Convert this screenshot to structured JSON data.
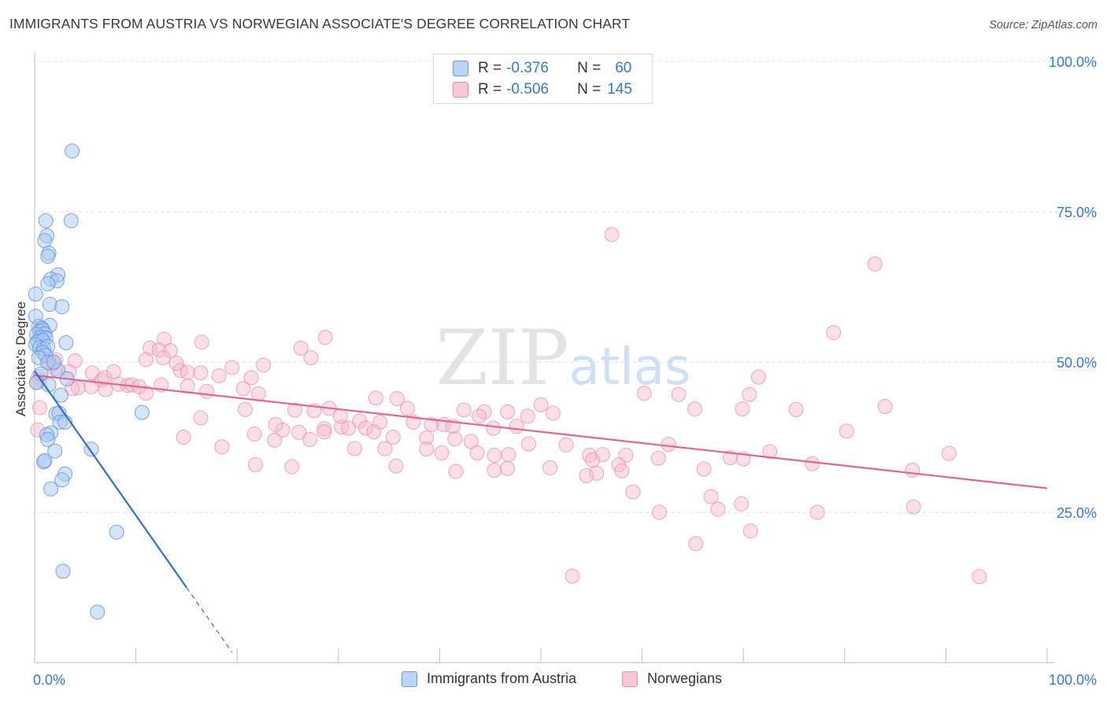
{
  "title": "IMMIGRANTS FROM AUSTRIA VS NORWEGIAN ASSOCIATE'S DEGREE CORRELATION CHART",
  "source": "Source: ZipAtlas.com",
  "watermark": {
    "zip": "ZIP",
    "atlas": "atlas"
  },
  "legend": {
    "rows": [
      {
        "r_label": "R =",
        "r_value": "-0.376",
        "n_label": "N =",
        "n_value": "60"
      },
      {
        "r_label": "R =",
        "r_value": "-0.506",
        "n_label": "N =",
        "n_value": "145"
      }
    ]
  },
  "colors": {
    "austria_fill": "#a9c8f0",
    "austria_stroke": "#5a90d8",
    "austria_line": "#2f6fd0",
    "norway_fill": "#f6b8cb",
    "norway_stroke": "#e98aa8",
    "norway_line": "#e0648f",
    "tick_text": "#3a76c9",
    "grid": "#dcdcdc"
  },
  "chart_data": {
    "type": "scatter",
    "ylabel": "Associate's Degree",
    "xlim": [
      0,
      100
    ],
    "ylim": [
      0,
      100
    ],
    "x_tick_labels": [
      "0.0%",
      "100.0%"
    ],
    "y_ticks": [
      25,
      50,
      75,
      100
    ],
    "y_tick_labels": [
      "25.0%",
      "50.0%",
      "75.0%",
      "100.0%"
    ],
    "series": [
      {
        "name": "Immigrants from Austria",
        "trend": {
          "x0": 0,
          "y0": 48.5,
          "x1": 15,
          "y1": 12.5,
          "dash_to_x": 19.5
        },
        "points": [
          [
            3.7,
            85.1
          ],
          [
            1.1,
            73.5
          ],
          [
            3.6,
            73.5
          ],
          [
            1.2,
            71.0
          ],
          [
            1.0,
            70.2
          ],
          [
            1.4,
            68.1
          ],
          [
            1.3,
            67.6
          ],
          [
            2.3,
            64.5
          ],
          [
            1.6,
            63.8
          ],
          [
            2.2,
            63.5
          ],
          [
            1.3,
            63.0
          ],
          [
            0.1,
            61.3
          ],
          [
            1.5,
            59.6
          ],
          [
            2.7,
            59.2
          ],
          [
            0.1,
            57.6
          ],
          [
            0.4,
            55.9
          ],
          [
            1.5,
            56.1
          ],
          [
            0.7,
            55.6
          ],
          [
            0.5,
            55.1
          ],
          [
            0.8,
            55.3
          ],
          [
            1.0,
            54.7
          ],
          [
            0.2,
            54.6
          ],
          [
            0.6,
            54.1
          ],
          [
            1.1,
            54.0
          ],
          [
            0.3,
            53.4
          ],
          [
            0.8,
            53.6
          ],
          [
            0.1,
            52.9
          ],
          [
            0.5,
            52.4
          ],
          [
            0.9,
            52.2
          ],
          [
            1.3,
            52.6
          ],
          [
            3.1,
            53.2
          ],
          [
            0.8,
            51.6
          ],
          [
            1.1,
            51.1
          ],
          [
            0.4,
            50.7
          ],
          [
            1.3,
            49.9
          ],
          [
            2.3,
            48.6
          ],
          [
            1.9,
            50.0
          ],
          [
            0.6,
            48.0
          ],
          [
            3.2,
            47.2
          ],
          [
            0.2,
            46.6
          ],
          [
            1.4,
            46.2
          ],
          [
            2.6,
            44.5
          ],
          [
            2.1,
            41.4
          ],
          [
            2.4,
            41.5
          ],
          [
            10.6,
            41.6
          ],
          [
            2.5,
            40.0
          ],
          [
            3.0,
            40.0
          ],
          [
            1.6,
            38.2
          ],
          [
            1.2,
            37.9
          ],
          [
            1.3,
            37.1
          ],
          [
            2.0,
            35.2
          ],
          [
            5.6,
            35.5
          ],
          [
            0.9,
            33.4
          ],
          [
            1.0,
            33.6
          ],
          [
            3.0,
            31.4
          ],
          [
            2.7,
            30.4
          ],
          [
            1.6,
            28.9
          ],
          [
            8.1,
            21.7
          ],
          [
            2.8,
            15.2
          ],
          [
            6.2,
            8.4
          ]
        ]
      },
      {
        "name": "Norwegians",
        "trend": {
          "x0": 0,
          "y0": 47.8,
          "x1": 100,
          "y1": 29.0
        },
        "points": [
          [
            57.0,
            71.2
          ],
          [
            83.0,
            66.3
          ],
          [
            78.9,
            54.9
          ],
          [
            28.7,
            54.1
          ],
          [
            26.3,
            52.3
          ],
          [
            12.8,
            53.8
          ],
          [
            11.4,
            52.3
          ],
          [
            12.3,
            52.0
          ],
          [
            13.4,
            51.9
          ],
          [
            16.5,
            53.3
          ],
          [
            11.0,
            50.4
          ],
          [
            12.7,
            50.7
          ],
          [
            27.3,
            50.7
          ],
          [
            4.0,
            50.2
          ],
          [
            1.4,
            50.1
          ],
          [
            2.1,
            50.4
          ],
          [
            3.4,
            48.4
          ],
          [
            7.8,
            48.4
          ],
          [
            5.7,
            48.2
          ],
          [
            14.4,
            48.6
          ],
          [
            16.4,
            48.2
          ],
          [
            18.2,
            47.7
          ],
          [
            21.4,
            47.4
          ],
          [
            6.6,
            47.0
          ],
          [
            8.3,
            46.3
          ],
          [
            9.2,
            46.1
          ],
          [
            4.3,
            45.7
          ],
          [
            3.7,
            45.6
          ],
          [
            7.0,
            45.4
          ],
          [
            17.0,
            45.1
          ],
          [
            9.6,
            46.2
          ],
          [
            11.0,
            44.8
          ],
          [
            71.5,
            47.5
          ],
          [
            60.2,
            44.8
          ],
          [
            63.6,
            44.6
          ],
          [
            70.6,
            44.6
          ],
          [
            33.7,
            44.0
          ],
          [
            35.8,
            43.9
          ],
          [
            36.8,
            42.3
          ],
          [
            27.6,
            41.9
          ],
          [
            29.1,
            42.3
          ],
          [
            42.4,
            42.0
          ],
          [
            44.4,
            41.7
          ],
          [
            46.7,
            41.7
          ],
          [
            50.0,
            42.9
          ],
          [
            51.2,
            41.5
          ],
          [
            48.7,
            41.0
          ],
          [
            65.2,
            42.2
          ],
          [
            69.9,
            42.2
          ],
          [
            75.2,
            42.1
          ],
          [
            25.7,
            42.0
          ],
          [
            16.4,
            40.7
          ],
          [
            32.1,
            40.2
          ],
          [
            34.1,
            40.0
          ],
          [
            37.4,
            40.0
          ],
          [
            39.2,
            39.6
          ],
          [
            40.4,
            39.6
          ],
          [
            41.3,
            39.3
          ],
          [
            45.3,
            39.0
          ],
          [
            47.6,
            39.3
          ],
          [
            28.6,
            38.9
          ],
          [
            30.3,
            39.2
          ],
          [
            31.0,
            39.0
          ],
          [
            32.7,
            39.0
          ],
          [
            33.5,
            38.4
          ],
          [
            35.4,
            37.5
          ],
          [
            38.7,
            37.4
          ],
          [
            41.5,
            37.2
          ],
          [
            43.1,
            36.8
          ],
          [
            48.8,
            36.4
          ],
          [
            52.5,
            36.2
          ],
          [
            24.5,
            38.7
          ],
          [
            26.1,
            38.3
          ],
          [
            27.2,
            37.1
          ],
          [
            28.6,
            38.4
          ],
          [
            14.7,
            37.5
          ],
          [
            21.7,
            38.0
          ],
          [
            23.7,
            37.0
          ],
          [
            18.5,
            35.9
          ],
          [
            31.6,
            35.6
          ],
          [
            34.6,
            35.6
          ],
          [
            38.7,
            35.5
          ],
          [
            40.2,
            34.9
          ],
          [
            43.7,
            34.9
          ],
          [
            45.4,
            34.5
          ],
          [
            46.8,
            34.6
          ],
          [
            54.8,
            34.5
          ],
          [
            56.1,
            34.6
          ],
          [
            58.4,
            34.5
          ],
          [
            61.6,
            34.0
          ],
          [
            68.7,
            34.1
          ],
          [
            70.0,
            33.9
          ],
          [
            72.6,
            35.1
          ],
          [
            76.8,
            33.1
          ],
          [
            84.0,
            42.6
          ],
          [
            80.2,
            38.5
          ],
          [
            90.3,
            34.8
          ],
          [
            86.7,
            32.0
          ],
          [
            55.1,
            33.7
          ],
          [
            57.7,
            32.9
          ],
          [
            55.5,
            31.5
          ],
          [
            54.5,
            31.1
          ],
          [
            50.9,
            32.4
          ],
          [
            58.0,
            31.9
          ],
          [
            62.6,
            36.3
          ],
          [
            66.1,
            32.2
          ],
          [
            25.4,
            32.6
          ],
          [
            21.8,
            32.9
          ],
          [
            35.7,
            32.7
          ],
          [
            41.6,
            31.8
          ],
          [
            45.4,
            32.0
          ],
          [
            46.7,
            32.3
          ],
          [
            59.1,
            28.4
          ],
          [
            66.8,
            27.6
          ],
          [
            69.8,
            26.4
          ],
          [
            67.5,
            25.5
          ],
          [
            61.7,
            25.0
          ],
          [
            77.3,
            25.0
          ],
          [
            86.8,
            25.9
          ],
          [
            70.7,
            21.9
          ],
          [
            65.3,
            19.8
          ],
          [
            53.1,
            14.4
          ],
          [
            93.3,
            14.3
          ],
          [
            2.0,
            48.9
          ],
          [
            10.3,
            45.9
          ],
          [
            20.6,
            45.6
          ],
          [
            22.1,
            44.7
          ],
          [
            6.9,
            47.4
          ],
          [
            19.5,
            49.1
          ],
          [
            15.1,
            48.3
          ],
          [
            1.8,
            49.7
          ],
          [
            22.6,
            49.5
          ],
          [
            14.0,
            49.8
          ],
          [
            23.8,
            39.6
          ],
          [
            5.6,
            45.9
          ],
          [
            43.9,
            41.0
          ],
          [
            20.8,
            42.1
          ],
          [
            15.1,
            46.0
          ],
          [
            30.2,
            41.0
          ],
          [
            0.5,
            47.0
          ],
          [
            0.4,
            47.6
          ],
          [
            0.3,
            38.7
          ],
          [
            0.5,
            42.4
          ],
          [
            0.2,
            46.6
          ],
          [
            12.5,
            46.2
          ]
        ]
      }
    ]
  },
  "bottom_legend": {
    "austria": "Immigrants from Austria",
    "norway": "Norwegians"
  }
}
